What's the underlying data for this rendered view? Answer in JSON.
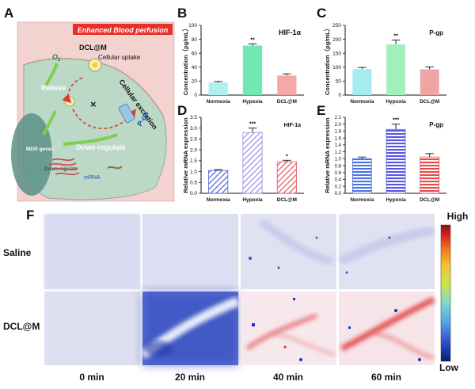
{
  "panel_letters": {
    "a": "A",
    "b": "B",
    "c": "C",
    "d": "D",
    "e": "E",
    "f": "F"
  },
  "schematic": {
    "banner": "Enhanced Blood perfusion",
    "o2": "O",
    "o2_sub": "2",
    "dclm": "DCL@M",
    "cellular_uptake": "Cellular uptake",
    "relieve": "Relieve",
    "cellular_excretion": "Cellular excretion",
    "pgp": "P-gp",
    "down_regulate": "Down-regulate",
    "mdr_gene": "MDR gene1",
    "down_regulate_small": "Down-regulate",
    "mrna": "mRNA",
    "colors": {
      "cell": "#f2d3d0",
      "cytoplasm": "#bcd8c6",
      "banner": "#e8302a",
      "arrow_red": "#e23a2a",
      "arrow_green": "#7fcf4f"
    }
  },
  "chart_data": [
    {
      "id": "B",
      "type": "bar",
      "title": "HIF-1α",
      "ylabel": "Concentration（pg/mL）",
      "categories": [
        "Normoxia",
        "Hypoxia",
        "DCL@M"
      ],
      "values": [
        18,
        71,
        28
      ],
      "errors": [
        1.5,
        2.5,
        2.5
      ],
      "significance": [
        "",
        "**",
        ""
      ],
      "ylim": [
        0,
        100
      ],
      "yticks": [
        "0",
        "20",
        "40",
        "60",
        "80",
        "100"
      ],
      "colors": [
        "#aef0ee",
        "#6fe8b4",
        "#f4a9a8"
      ],
      "pattern": "solid"
    },
    {
      "id": "C",
      "type": "bar",
      "title": "P-gp",
      "ylabel": "Concentration（pg/mL）",
      "categories": [
        "Normoxia",
        "Hypoxia",
        "DCL@M"
      ],
      "values": [
        93,
        182,
        92
      ],
      "errors": [
        6,
        15,
        9
      ],
      "significance": [
        "",
        "**",
        ""
      ],
      "ylim": [
        0,
        250
      ],
      "yticks": [
        "0",
        "50",
        "100",
        "150",
        "200",
        "250"
      ],
      "colors": [
        "#a5ecee",
        "#a3f0bd",
        "#f0a4a4"
      ],
      "pattern": "solid"
    },
    {
      "id": "D",
      "type": "bar",
      "title": "HIF-1a",
      "ylabel": "Relative mRNA expression",
      "categories": [
        "Normoxia",
        "Hypoxia",
        "DCL@M"
      ],
      "values": [
        1.05,
        2.8,
        1.45
      ],
      "errors": [
        0.04,
        0.2,
        0.07
      ],
      "significance": [
        "",
        "***",
        "*"
      ],
      "ylim": [
        0,
        3.5
      ],
      "yticks": [
        "0.0",
        "0.5",
        "1.0",
        "1.5",
        "2.0",
        "2.5",
        "3.0",
        "3.5"
      ],
      "colors": [
        "#4a63d8",
        "#9a8ce6",
        "#e8505a"
      ],
      "pattern": "diagonal"
    },
    {
      "id": "E",
      "type": "bar",
      "title": "P-gp",
      "ylabel": "Relative mRNA expression",
      "categories": [
        "Normoxia",
        "Hypoxia",
        "DCL@M"
      ],
      "values": [
        1.0,
        1.85,
        1.05
      ],
      "errors": [
        0.05,
        0.15,
        0.1
      ],
      "significance": [
        "",
        "***",
        ""
      ],
      "ylim": [
        0,
        2.2
      ],
      "yticks": [
        "0.0",
        "0.2",
        "0.4",
        "0.6",
        "0.8",
        "1.0",
        "1.2",
        "1.4",
        "1.6",
        "1.8",
        "2.0",
        "2.2"
      ],
      "colors": [
        "#4a72e0",
        "#5457e2",
        "#e84a4a"
      ],
      "pattern": "horizontal"
    }
  ],
  "heatmap_panel": {
    "rows": [
      "Saline",
      "DCL@M"
    ],
    "columns": [
      "0 min",
      "20 min",
      "40 min",
      "60 min"
    ],
    "scale_high": "High",
    "scale_low": "Low",
    "colormap": [
      "#08206e",
      "#2b4fd4",
      "#4fa3e6",
      "#7cd6d0",
      "#c8e64a",
      "#f5c62e",
      "#f07a24",
      "#d8261f",
      "#8c0f14"
    ],
    "intensity_level": [
      [
        "very low",
        "very low",
        "low",
        "low"
      ],
      [
        "very low",
        "medium",
        "high",
        "high"
      ]
    ]
  }
}
